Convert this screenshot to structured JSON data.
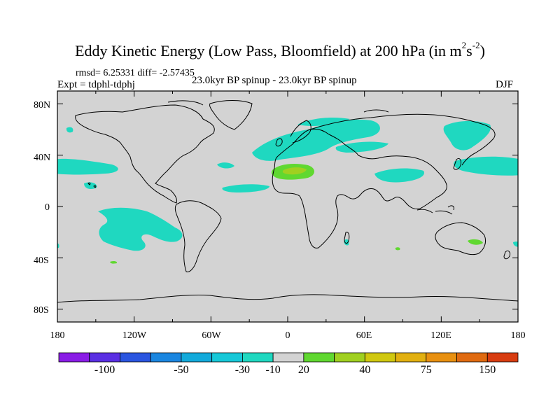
{
  "title": {
    "main": "Eddy Kinetic Energy (Low Pass, Bloomfield) at 200 hPa (in m",
    "sup1": "2",
    "mid": "s",
    "sup2": "-2",
    "end": ")"
  },
  "stats": "rmsd= 6.25331 diff= -2.57435",
  "experiment": "Expt = tdphl-tdphj",
  "subtitle": "23.0kyr BP spinup - 23.0kyr BP spinup",
  "season": "DJF",
  "axes": {
    "lat_labels": [
      "80N",
      "40N",
      "0",
      "40S",
      "80S"
    ],
    "lon_labels": [
      "180",
      "120W",
      "60W",
      "0",
      "60E",
      "120E",
      "180"
    ]
  },
  "colorbar": {
    "labels": [
      "-100",
      "-50",
      "-30",
      "-10",
      "20",
      "40",
      "75",
      "150"
    ],
    "colors": [
      "#8a1ce6",
      "#5a2fe3",
      "#2a55e0",
      "#1a86e0",
      "#12aadb",
      "#16c8d8",
      "#1fd8c0",
      "#d3d3d3",
      "#60d830",
      "#a0d020",
      "#d0c810",
      "#e2b010",
      "#e89010",
      "#e06a10",
      "#d83c10"
    ]
  },
  "palette": {
    "background": "#d3d3d3",
    "cyan": "#1fd8c0",
    "green": "#60d830",
    "yellowgreen": "#a0d020",
    "coast": "#000000"
  }
}
